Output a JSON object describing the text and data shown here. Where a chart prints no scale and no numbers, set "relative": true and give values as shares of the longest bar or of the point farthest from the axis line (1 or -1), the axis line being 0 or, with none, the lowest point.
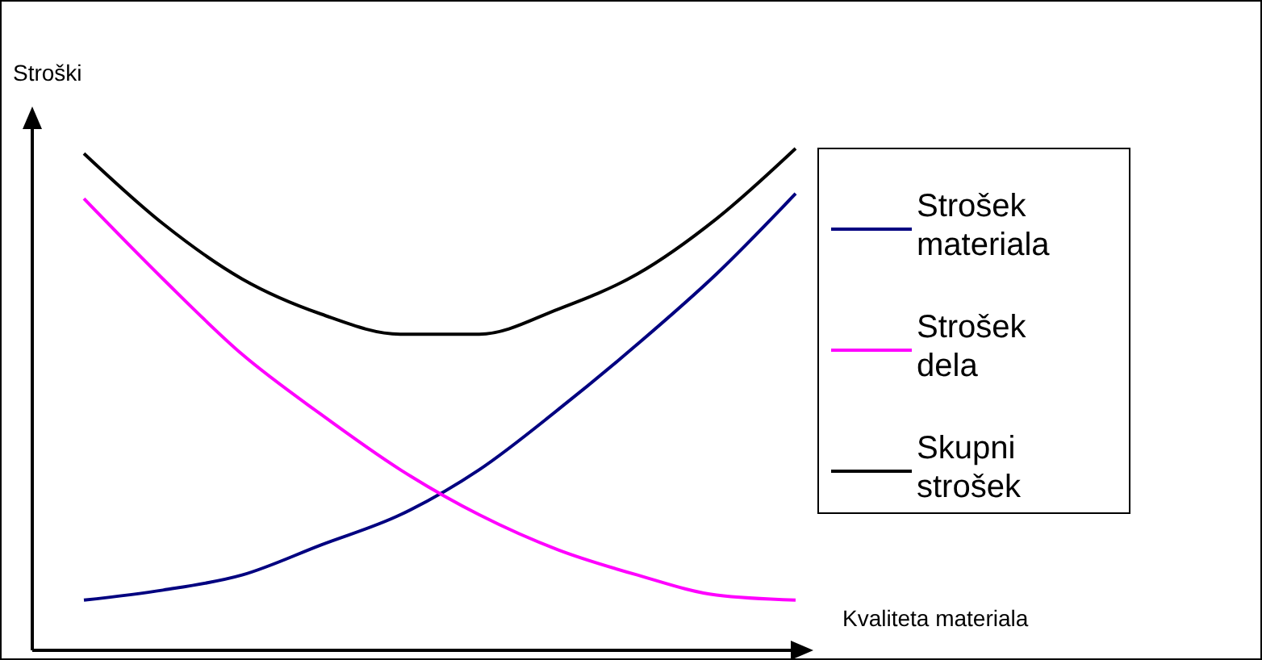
{
  "chart_data": {
    "type": "line",
    "relative": true,
    "ylabel": "Stroški",
    "xlabel": "Kvaliteta materiala",
    "legend": "right",
    "marker": "none",
    "line_style": "solid",
    "categories": [
      null,
      null,
      null,
      null,
      null,
      null,
      null,
      null,
      null,
      null
    ],
    "series": [
      {
        "name": "Strošek materiala",
        "color": "#000080",
        "values": [
          0.1,
          0.12,
          0.15,
          0.21,
          0.27,
          0.36,
          0.48,
          0.61,
          0.75,
          0.91
        ]
      },
      {
        "name": "Strošek dela",
        "color": "#ff00ff",
        "values": [
          0.9,
          0.74,
          0.59,
          0.47,
          0.36,
          0.27,
          0.2,
          0.15,
          0.11,
          0.1
        ]
      },
      {
        "name": "Skupni strošek",
        "color": "#000000",
        "values": [
          0.99,
          0.85,
          0.74,
          0.67,
          0.63,
          0.63,
          0.68,
          0.75,
          0.86,
          1.0
        ]
      }
    ]
  }
}
